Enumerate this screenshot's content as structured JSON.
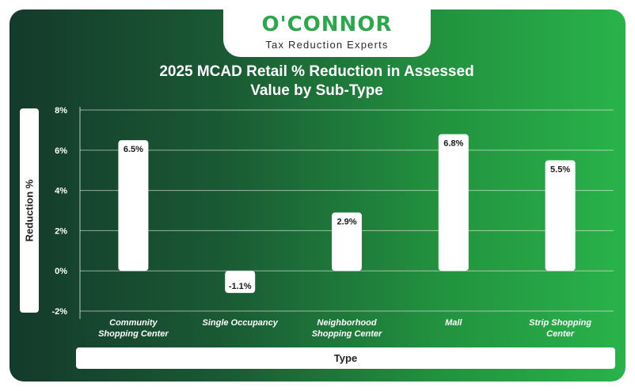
{
  "logo": {
    "brand": "O'CONNOR",
    "tagline": "Tax Reduction Experts"
  },
  "colors": {
    "brand_green": "#2aa84a",
    "bar_fill": "#ffffff",
    "background_dark": "#143a2b",
    "background_light": "#29b34a"
  },
  "chart_data": {
    "type": "bar",
    "title_line1": "2025 MCAD Retail % Reduction in Assessed",
    "title_line2": "Value by Sub-Type",
    "xlabel": "Type",
    "ylabel": "Reduction %",
    "categories": [
      [
        "Community",
        "Shopping Center"
      ],
      [
        "Single Occupancy"
      ],
      [
        "Neighborhood",
        "Shopping Center"
      ],
      [
        "Mall"
      ],
      [
        "Strip Shopping",
        "Center"
      ]
    ],
    "values": [
      6.5,
      -1.1,
      2.9,
      6.8,
      5.5
    ],
    "value_labels": [
      "6.5%",
      "-1.1%",
      "2.9%",
      "6.8%",
      "5.5%"
    ],
    "ylim": [
      -2,
      8
    ],
    "yticks": [
      -2,
      0,
      2,
      4,
      6,
      8
    ],
    "ytick_labels": [
      "-2%",
      "0%",
      "2%",
      "4%",
      "6%",
      "8%"
    ],
    "grid": true,
    "legend": "none"
  }
}
